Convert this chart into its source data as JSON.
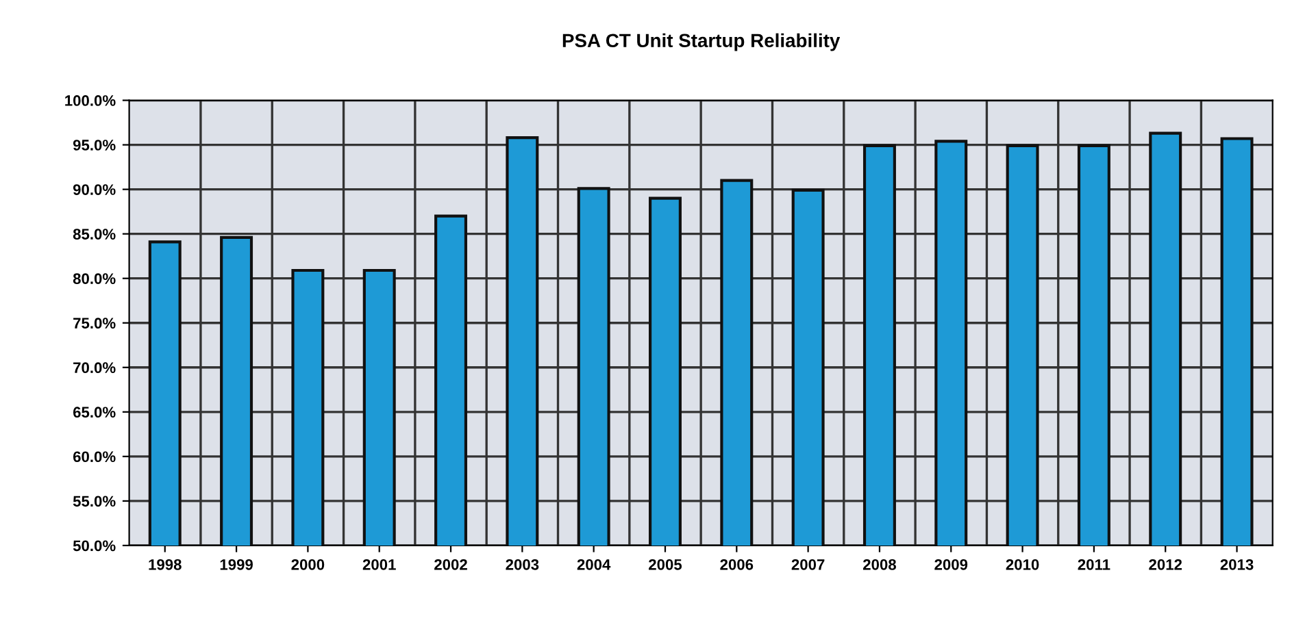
{
  "chart_data": {
    "type": "bar",
    "title": "PSA CT Unit Startup Reliability",
    "categories": [
      "1998",
      "1999",
      "2000",
      "2001",
      "2002",
      "2003",
      "2004",
      "2005",
      "2006",
      "2007",
      "2008",
      "2009",
      "2010",
      "2011",
      "2012",
      "2013"
    ],
    "values": [
      84.1,
      84.6,
      80.9,
      80.9,
      87.0,
      95.8,
      90.1,
      89.0,
      91.0,
      89.9,
      94.9,
      95.4,
      94.9,
      94.9,
      96.3,
      95.7
    ],
    "color": "#1e9ad6",
    "ylim": [
      50,
      100
    ],
    "yticks": [
      {
        "value": 50,
        "label": "50.0%"
      },
      {
        "value": 55,
        "label": "55.0%"
      },
      {
        "value": 60,
        "label": "60.0%"
      },
      {
        "value": 65,
        "label": "65.0%"
      },
      {
        "value": 70,
        "label": "70.0%"
      },
      {
        "value": 75,
        "label": "75.0%"
      },
      {
        "value": 80,
        "label": "80.0%"
      },
      {
        "value": 85,
        "label": "85.0%"
      },
      {
        "value": 90,
        "label": "90.0%"
      },
      {
        "value": 95,
        "label": "95.0%"
      },
      {
        "value": 100,
        "label": "100.0%"
      }
    ],
    "grid": true
  }
}
